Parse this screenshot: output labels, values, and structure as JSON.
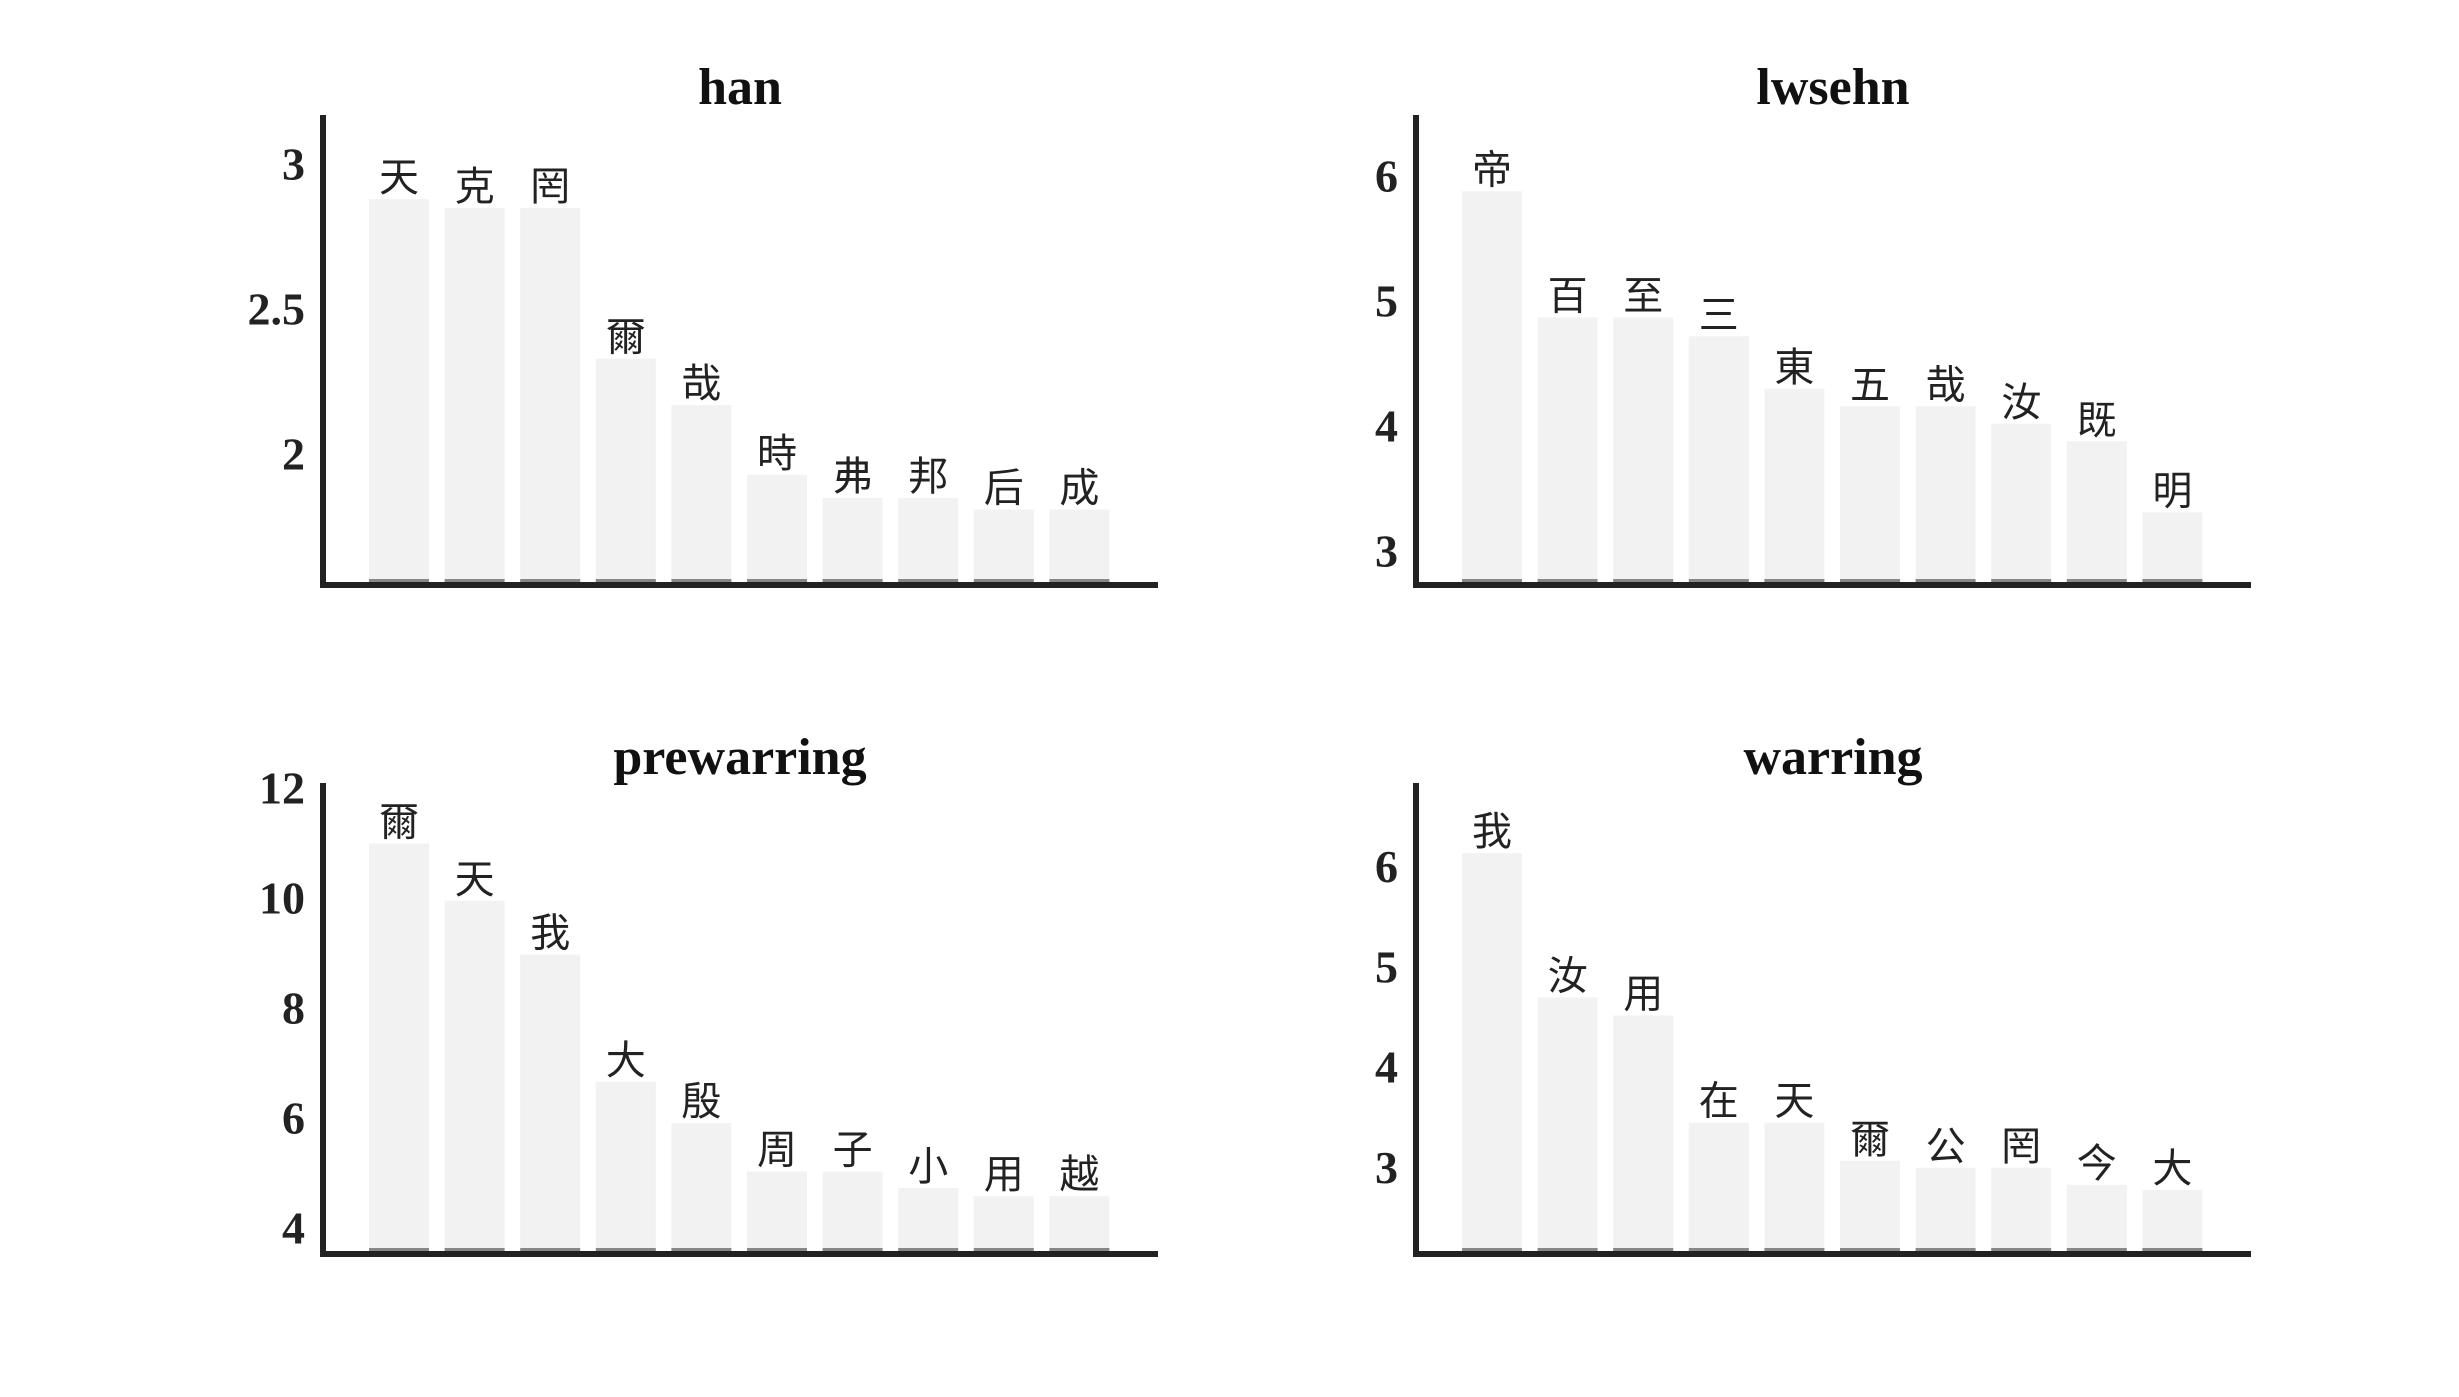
{
  "chart_data": [
    {
      "type": "bar",
      "title": "han",
      "categories": [
        "天",
        "克",
        "罔",
        "爾",
        "哉",
        "時",
        "弗",
        "邦",
        "后",
        "成"
      ],
      "values": [
        2.88,
        2.85,
        2.85,
        2.33,
        2.17,
        1.93,
        1.85,
        1.85,
        1.81,
        1.81
      ],
      "ylim": [
        1.55,
        3.17
      ],
      "yticks": [
        2,
        2.5,
        3
      ],
      "ytick_labels": [
        "2",
        "2.5",
        "3"
      ],
      "grid": false,
      "legend": "none"
    },
    {
      "type": "bar",
      "title": "lwsehn",
      "categories": [
        "帝",
        "百",
        "至",
        "三",
        "東",
        "五",
        "哉",
        "汝",
        "既",
        "明"
      ],
      "values": [
        5.88,
        4.87,
        4.87,
        4.72,
        4.3,
        4.16,
        4.16,
        4.02,
        3.88,
        3.31
      ],
      "ylim": [
        2.73,
        6.49
      ],
      "yticks": [
        3,
        4,
        5,
        6
      ],
      "ytick_labels": [
        "3",
        "4",
        "5",
        "6"
      ],
      "grid": false,
      "legend": "none"
    },
    {
      "type": "bar",
      "title": "prewarring",
      "categories": [
        "爾",
        "天",
        "我",
        "大",
        "殷",
        "周",
        "子",
        "小",
        "用",
        "越"
      ],
      "values": [
        11.0,
        9.96,
        8.98,
        6.67,
        5.92,
        5.04,
        5.04,
        4.74,
        4.59,
        4.59
      ],
      "ylim": [
        3.54,
        12.1
      ],
      "yticks": [
        4,
        6,
        8,
        10,
        12
      ],
      "ytick_labels": [
        "4",
        "6",
        "8",
        "10",
        "12"
      ],
      "grid": false,
      "legend": "none"
    },
    {
      "type": "bar",
      "title": "warring",
      "categories": [
        "我",
        "汝",
        "用",
        "在",
        "天",
        "爾",
        "公",
        "罔",
        "今",
        "大"
      ],
      "values": [
        6.14,
        4.7,
        4.52,
        3.45,
        3.45,
        3.07,
        3.0,
        3.0,
        2.83,
        2.78
      ],
      "ylim": [
        2.14,
        6.84
      ],
      "yticks": [
        3,
        4,
        5,
        6
      ],
      "ytick_labels": [
        "3",
        "4",
        "5",
        "6"
      ],
      "grid": false,
      "legend": "none"
    }
  ],
  "colors": {
    "bar": "#f2f2f2",
    "bar_base": "#888888",
    "axis": "#222222",
    "text": "#111111"
  }
}
